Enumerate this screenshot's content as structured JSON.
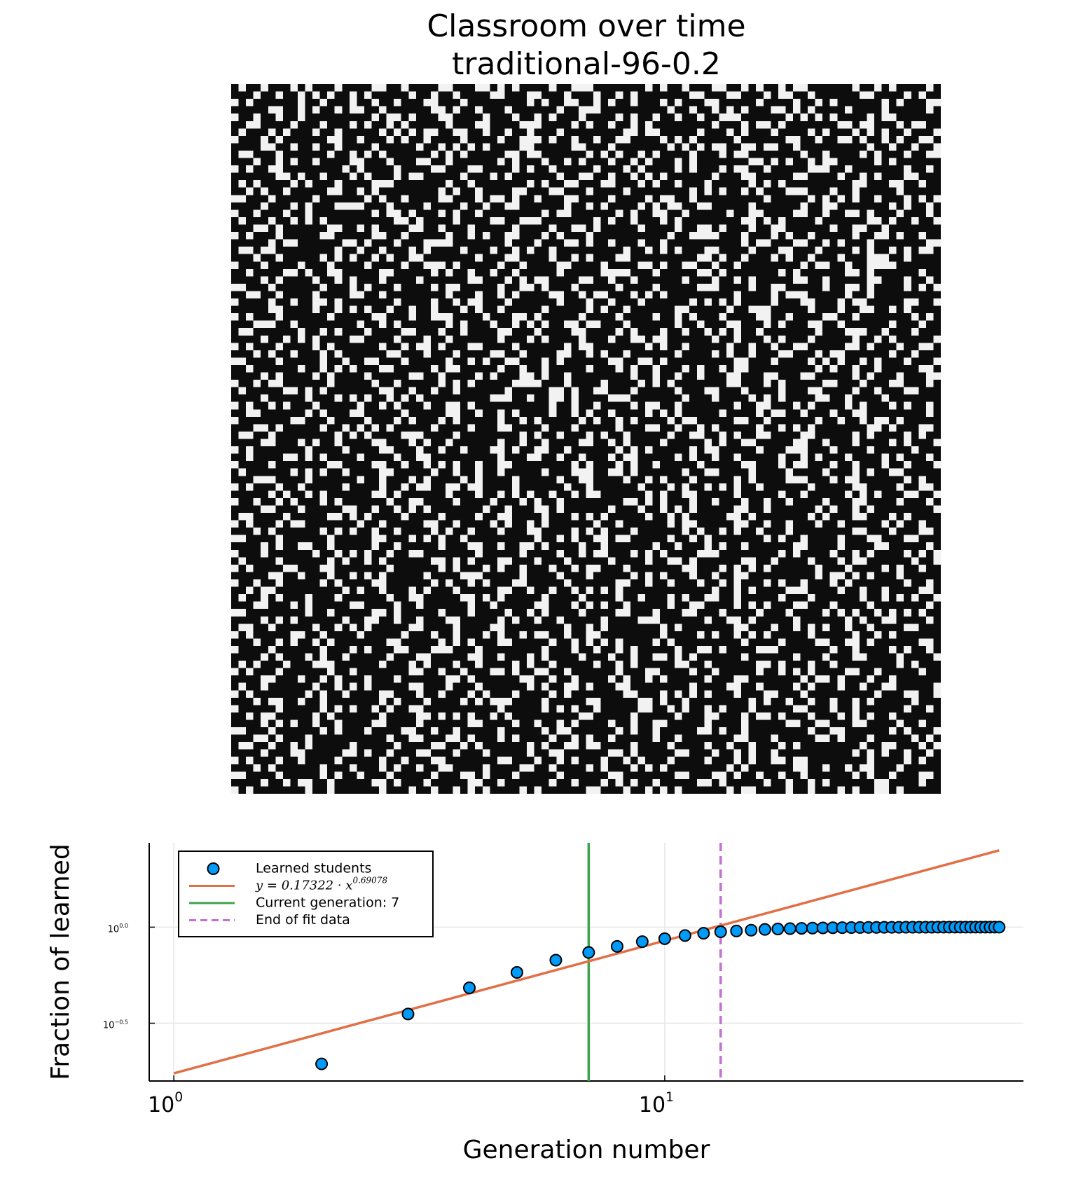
{
  "chart_data": [
    {
      "type": "heatmap",
      "title": "Classroom over time",
      "subtitle": "traditional-96-0.2",
      "colors": [
        "#0d0d0d",
        "#f2f2f2"
      ],
      "rows_hex": [
        "48A2190C6A1380A4652C0942",
        "1254A09218C44A0318B20614",
        "A048923100A65228C10940A3",
        "0652C81A4409C012546A1082",
        "9240168C22510A49381542C0",
        "3088A50461C2928045A0362C",
        "45120AB3248806C114428A91",
        "8A06452109D24C2A081934A6",
        "0C92104AA183101566C80249",
        "6204A81506C0A9422C048513",
        "1290C4640A25128A0352C140",
        "A6014218C290450A2C839012",
        "0348A2C1140992A0460C2518",
        "50A21C0480A6314882A00C64",
        "2906500A43188402A51C4820",
        "C410290C5A4610B20082A915",
        "08A3C4212604A1598204C052",
        "9120168A402C0A64130C9A22",
        "44A8034219C0522806A10349",
        "1A0650C882134109A2604C80",
        "A20C1904A6288013C45209A4",
        "0581A23C04469120058CA203",
        "6C0248A1129004A8C2310A56",
        "120A94C046128C01A4522390",
        "8844213A090C21A6480593C0",
        "21A60C1492083C41A0281A04",
        "0A128840C56192044A0C8312",
        "C408A21609A20841C2609A15",
        "3210C8044A1962A0085C1200",
        "849A0212C4089102A8462C19",
        "0612A4914820A40C13822650",
        "A204189C2341084A2190C80A",
        "1C804A0512A6C40918A32044",
        "604A21890C430A24A9011C88",
        "0950C22408A1136048A20941",
        "A2140968C20580A4124C1A26",
        "148A0622190CA40852316048",
        "C2093104A62819A00C42A511",
        "204A8C1609208A452C014906",
        "0A1420C851A4024918C60A23",
        "9604120A83C4215018A0C462",
        "41A80C92041A6208C4230918",
        "0822A5401C9A1C0442A19080",
        "A5104A26801242C8098A1452",
        "3028C1064A1290A821644C02",
        "80C4228A09414A160C8125A0",
        "1A0954108C2208C9412A0346",
        "6402A1C20148A41329860A14",
        "0C5218A409219420A60C8851",
        "A0210C491A640A82C11C4208",
        "21A8426008C9160A482510A2",
        "8406192A4C028A41062C4891",
        "40A90C1248239A04C2108A60",
        "1C2048A1420984A20A1C5814",
        "A2410966C2048114A9020C26",
        "05281A044A92C0A608241519",
        "928A04C2114806A244908C22",
        "0C4192A02468112A0C814A01",
        "6106A1084C22A0941A028C50",
        "A2C0483214A048160C9120A4",
        "140A921488C2A20529100C46",
        "C20418A9004A6C1280A42318",
        "0A641208C9A12048A40C2182",
        "8812A4C0410962A1C0284A15",
        "4205281A8C44109A06422C09",
        "A18C040A2912C4062A8110A4",
        "0644A821C10882A24C016A20",
        "920A1814A3040C9128A45012",
        "2C0148A20C92A8004A1C2486",
        "4A2204C1A8210914C82204A9",
        "18A0C2409062A4130A8C4202",
        "C0241A0884A10C462110A954",
        "0A8132460A4821C09A0814C2",
        "6412A0C21804A0280C4A9218",
        "A0C841122964C0214A820940",
        "1294060A8C12A85004219A06",
        "8408A31C40224A09A1C04852",
        "0A290460C8A1126A04088C21",
        "511C08A242904A0C81A24028",
        "A20480C91A6408C2412A1904",
        "0C4A2206819214A08C05A240",
        "4812A0C440A68C02190A24C1",
        "A0290C48A214062A88C40119",
        "16480A215C20C1A402924A08",
        "820A94C0082A4194A20C4812",
        "2C14086A94018208C5A22A40",
        "0A921840C24A126084198C24",
        "C40A2192082C0A41A4026051",
        "1A2004C68A1290480C41A20A",
        "64A0821940A6C210922804C5",
        "08C1A46220981A0C4A400A92",
        "A24209180C4A25108A6C0214",
        "14088A4C2190A2A0140C9620",
        "C20A4411A208180C69240A46",
        "09641A20C8122A41A0928184",
        "A0240892A140C4A8161229A0"
      ]
    },
    {
      "type": "scatter",
      "xlabel": "Generation number",
      "ylabel": "Fraction of learned",
      "xscale": "log",
      "yscale": "log",
      "grid": true,
      "legend": "upper left",
      "xlim": [
        0.891,
        53.8
      ],
      "ylim": [
        0.158,
        2.75
      ],
      "xticks": [
        {
          "value": 1,
          "label": "10",
          "exponent": "0"
        },
        {
          "value": 10,
          "label": "10",
          "exponent": "1"
        }
      ],
      "yticks": [
        {
          "value": 0.316,
          "label": "10",
          "exponent": "−0.5"
        },
        {
          "value": 1,
          "label": "10",
          "exponent": "0.0"
        }
      ],
      "series": [
        {
          "name": "Learned students",
          "kind": "points",
          "color": "#009af9",
          "x": [
            2,
            3,
            4,
            5,
            6,
            7,
            8,
            9,
            10,
            11,
            12,
            13,
            14,
            15,
            16,
            17,
            18,
            19,
            20,
            21,
            22,
            23,
            24,
            25,
            26,
            27,
            28,
            29,
            30,
            31,
            32,
            33,
            34,
            35,
            36,
            37,
            38,
            39,
            40,
            41,
            42,
            43,
            44,
            45,
            46,
            47,
            48
          ],
          "values": [
            0.194,
            0.353,
            0.483,
            0.581,
            0.673,
            0.738,
            0.794,
            0.84,
            0.871,
            0.904,
            0.929,
            0.946,
            0.955,
            0.964,
            0.973,
            0.978,
            0.982,
            0.986,
            0.989,
            0.991,
            0.993,
            0.994,
            0.995,
            0.996,
            0.997,
            0.997,
            0.998,
            0.998,
            0.998,
            0.999,
            0.999,
            0.999,
            0.999,
            0.999,
            1,
            1,
            1,
            1,
            1,
            1,
            1,
            1,
            1,
            1,
            1,
            1,
            1
          ]
        },
        {
          "name": "y = 0.17322 · x",
          "exponent": "0.69078",
          "kind": "line",
          "color": "#e26f46",
          "x": [
            1,
            48
          ],
          "values": [
            0.17322,
            2.512
          ]
        }
      ],
      "vlines": [
        {
          "name": "Current generation: 7",
          "x": 7,
          "color": "#3da44d",
          "dashed": false
        },
        {
          "name": "End of fit data",
          "x": 13,
          "color": "#c271d2",
          "dashed": true
        }
      ]
    }
  ]
}
